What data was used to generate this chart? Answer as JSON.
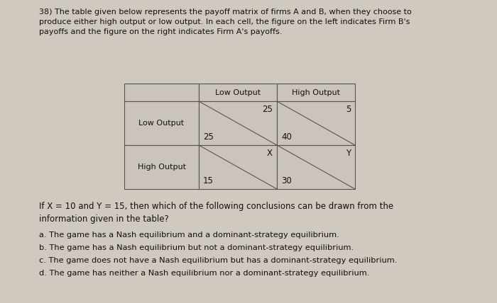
{
  "title_number": "38)",
  "title_text": "The table given below represents the payoff matrix of firms A and B, when they choose to\nproduce either high output or low output. In each cell, the figure on the left indicates Firm B's\npayoffs and the figure on the right indicates Firm A's payoffs.",
  "col_headers": [
    "Low Output",
    "High Output"
  ],
  "row_headers": [
    "Low Output",
    "High Output"
  ],
  "cells": [
    {
      "top_right": "25",
      "bottom_left": "25"
    },
    {
      "top_right": "5",
      "bottom_left": "40"
    },
    {
      "top_right": "X",
      "bottom_left": "15"
    },
    {
      "top_right": "Y",
      "bottom_left": "30"
    }
  ],
  "question_text": "If X = 10 and Y = 15, then which of the following conclusions can be drawn from the\ninformation given in the table?",
  "options": [
    "a. The game has a Nash equilibrium and a dominant-strategy equilibrium.",
    "b. The game has a Nash equilibrium but not a dominant-strategy equilibrium.",
    "c. The game does not have a Nash equilibrium but has a dominant-strategy equilibrium.",
    "d. The game has neither a Nash equilibrium nor a dominant-strategy equilibrium."
  ],
  "bg_color": "#cfc9c0",
  "edge_color": "#555555",
  "text_color": "#111111",
  "cell_bg": "#cac4bc",
  "title_fontsize": 8.0,
  "header_fontsize": 8.0,
  "cell_fontsize": 8.5,
  "body_fontsize": 8.5,
  "option_fontsize": 8.2
}
